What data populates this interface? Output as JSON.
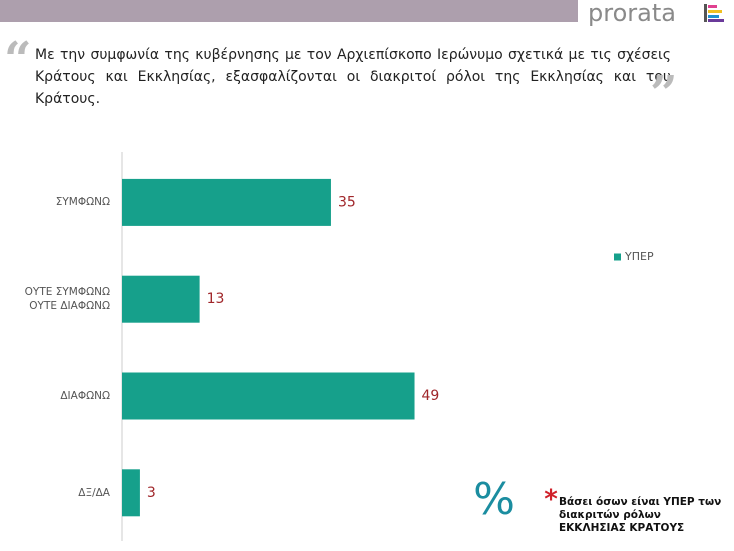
{
  "header": {
    "logo": "prorata"
  },
  "question": {
    "quote_open": "“",
    "text": "Με την συμφωνία της κυβέρνησης με τον Αρχιεπίσκοπο Ιερώνυμο σχετικά με τις σχέσεις Κράτους και Εκκλησίας, εξασφαλίζονται οι διακριτοί ρόλοι της Εκκλησίας και του Κράτους.",
    "quote_close": "”"
  },
  "chart_data": {
    "type": "bar",
    "orientation": "horizontal",
    "categories": [
      "ΣΥΜΦΩΝΩ",
      "ΟΥΤΕ ΣΥΜΦΩΝΩ ΟΥΤΕ ΔΙΑΦΩΝΩ",
      "ΔΙΑΦΩΝΩ",
      "ΔΞ/ΔΑ"
    ],
    "series": [
      {
        "name": "ΥΠΕΡ",
        "color": "#16a08b",
        "values": [
          35,
          13,
          49,
          3
        ]
      }
    ],
    "value_label_color": "#a0262a",
    "legend": "right"
  },
  "footnote": {
    "symbol": "%",
    "asterisk": "*",
    "text": "Βάσει όσων είναι ΥΠΕΡ των διακριτών ρόλων ΕΚΚΛΗΣΙΑΣ ΚΡΑΤΟΥΣ"
  }
}
